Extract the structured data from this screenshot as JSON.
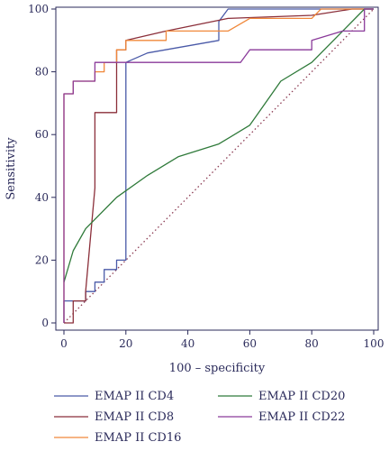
{
  "chart_data": {
    "type": "line",
    "title": "",
    "xlabel": "100 – specificity",
    "ylabel": "Sensitivity",
    "xlim": [
      0,
      100
    ],
    "ylim": [
      0,
      100
    ],
    "xticks": [
      0,
      20,
      40,
      60,
      80,
      100
    ],
    "yticks": [
      0,
      20,
      40,
      60,
      80,
      100
    ],
    "grid": false,
    "legend_position": "bottom",
    "reference_line": {
      "x": [
        0,
        100
      ],
      "y": [
        0,
        100
      ],
      "style": "dotted",
      "color": "#8b3a52"
    },
    "series": [
      {
        "name": "EMAP II CD4",
        "color": "#4a5aa8",
        "x": [
          0,
          0,
          7,
          7,
          10,
          10,
          13,
          13,
          17,
          17,
          20,
          20,
          27,
          50,
          50,
          53,
          100
        ],
        "y": [
          0,
          7,
          7,
          10,
          10,
          13,
          13,
          17,
          17,
          20,
          20,
          83,
          86,
          90,
          96,
          100,
          100
        ]
      },
      {
        "name": "EMAP II CD8",
        "color": "#8b2f3a",
        "x": [
          0,
          3,
          3,
          7,
          7,
          10,
          10,
          17,
          17,
          20,
          20,
          33,
          53,
          80,
          93,
          100
        ],
        "y": [
          0,
          0,
          7,
          7,
          10,
          43,
          67,
          67,
          87,
          87,
          90,
          93,
          97,
          98,
          100,
          100
        ]
      },
      {
        "name": "EMAP II CD16",
        "color": "#f0883a",
        "x": [
          0,
          0,
          3,
          3,
          10,
          10,
          13,
          13,
          17,
          17,
          20,
          20,
          33,
          33,
          53,
          60,
          80,
          83,
          100
        ],
        "y": [
          0,
          73,
          73,
          77,
          77,
          80,
          80,
          83,
          83,
          87,
          87,
          90,
          90,
          93,
          93,
          97,
          97,
          100,
          100
        ]
      },
      {
        "name": "EMAP II CD20",
        "color": "#2f7a3a",
        "x": [
          0,
          3,
          7,
          17,
          27,
          37,
          50,
          60,
          70,
          80,
          90,
          97,
          100
        ],
        "y": [
          13,
          23,
          30,
          40,
          47,
          53,
          57,
          63,
          77,
          83,
          93,
          100,
          100
        ]
      },
      {
        "name": "EMAP II CD22",
        "color": "#8a3a9a",
        "x": [
          0,
          0,
          3,
          3,
          10,
          10,
          20,
          20,
          57,
          60,
          80,
          80,
          90,
          97,
          97,
          100
        ],
        "y": [
          0,
          73,
          73,
          77,
          77,
          83,
          83,
          83,
          83,
          87,
          87,
          90,
          93,
          93,
          100,
          100
        ]
      }
    ]
  }
}
